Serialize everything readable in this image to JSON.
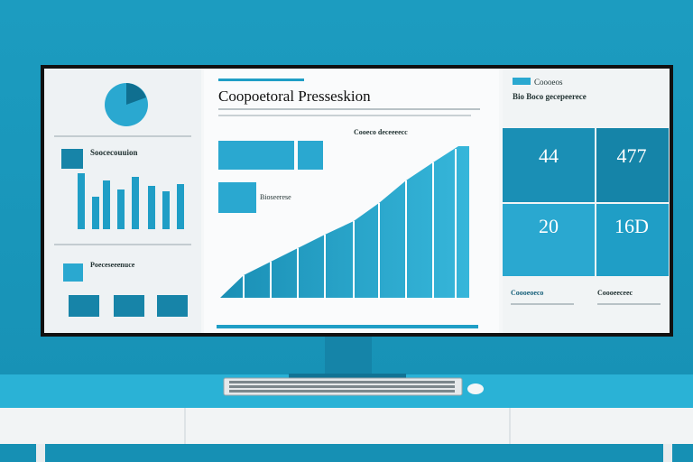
{
  "screen": {
    "left_panel": {
      "heading1": "Soocecouuion",
      "heading2": "Poeceseeenuce"
    },
    "center": {
      "title": "Coopoetoral Presseskion",
      "chart_label": "Cooeco deceeeecc",
      "box_label": "Bioseerese"
    },
    "right_panel": {
      "header1": "Coooeos",
      "header2": "Bio Boco gecepeerece",
      "stats": [
        "44",
        "477",
        "20",
        "16D"
      ],
      "footer_left": "Coooeoeco",
      "footer_right": "Coooeeceec"
    }
  }
}
